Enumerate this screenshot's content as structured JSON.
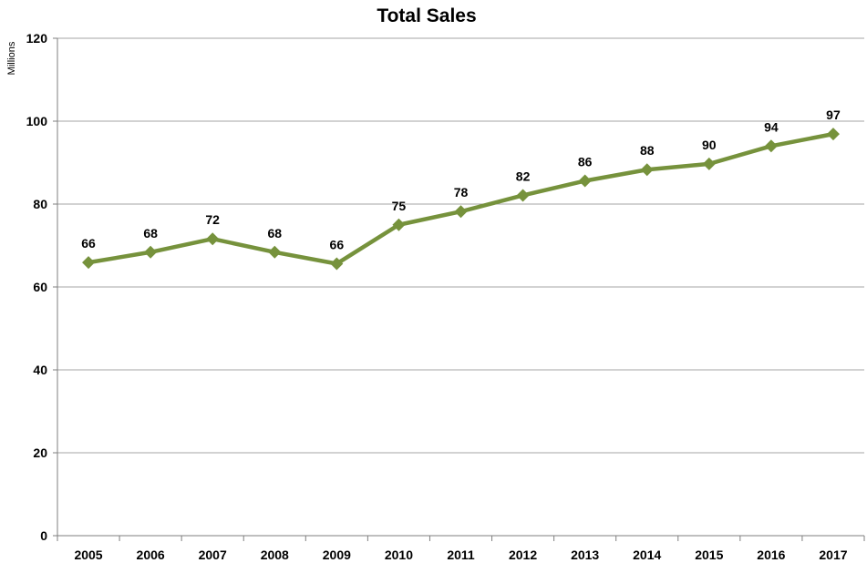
{
  "chart_data": {
    "type": "line",
    "title": "Total Sales",
    "xlabel": "",
    "ylabel": "Millions",
    "ylim": [
      0,
      120
    ],
    "yticks": [
      0,
      20,
      40,
      60,
      80,
      100,
      120
    ],
    "grid": "horizontal",
    "legend": "none",
    "categories": [
      "2005",
      "2006",
      "2007",
      "2008",
      "2009",
      "2010",
      "2011",
      "2012",
      "2013",
      "2014",
      "2015",
      "2016",
      "2017"
    ],
    "series": [
      {
        "color": "#76923c",
        "marker": "diamond",
        "values": [
          65.9,
          68.4,
          71.6,
          68.4,
          65.6,
          75.0,
          78.2,
          82.1,
          85.6,
          88.3,
          89.7,
          94.0,
          96.9
        ],
        "data_labels": [
          "66",
          "68",
          "72",
          "68",
          "66",
          "75",
          "78",
          "82",
          "86",
          "88",
          "90",
          "94",
          "97"
        ]
      }
    ]
  }
}
